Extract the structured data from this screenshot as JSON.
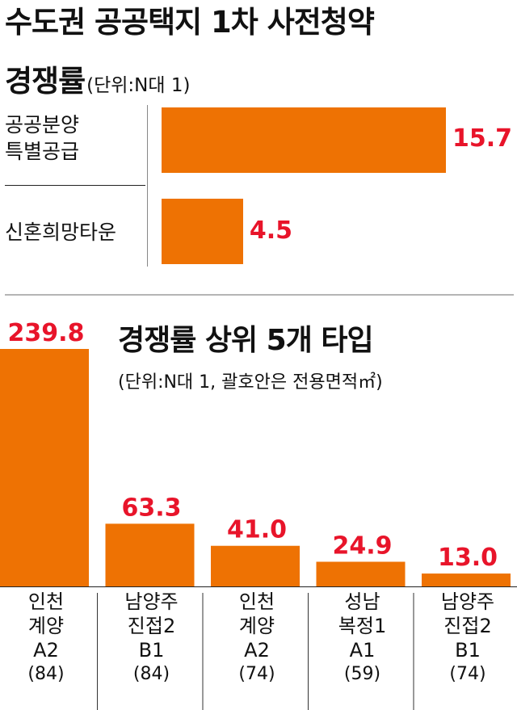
{
  "header": {
    "title_line1": "수도권 공공택지 1차 사전청약",
    "title_line2": "경쟁률",
    "unit": "(단위:N대 1)"
  },
  "chart_data": [
    {
      "type": "bar",
      "orientation": "horizontal",
      "title": "수도권 공공택지 1차 사전청약 경쟁률",
      "unit": "(단위:N대 1)",
      "categories": [
        "공공분양 특별공급",
        "신혼희망타운"
      ],
      "category_lines": [
        [
          "공공분양",
          "특별공급"
        ],
        [
          "신혼희망타운"
        ]
      ],
      "values": [
        15.7,
        4.5
      ],
      "value_labels": [
        "15.7",
        "4.5"
      ],
      "xlim": [
        0,
        15.7
      ],
      "bar_color": "#ee7203",
      "value_color": "#e8142a",
      "grid": false
    },
    {
      "type": "bar",
      "orientation": "vertical",
      "title": "경쟁률 상위 5개 타입",
      "unit": "(단위:N대 1, 괄호안은 전용면적㎡)",
      "categories": [
        "인천 계양 A2 (84)",
        "남양주 진접2 B1 (84)",
        "인천 계양 A2 (74)",
        "성남 복정1 A1 (59)",
        "남양주 진접2 B1 (74)"
      ],
      "category_lines": [
        [
          "인천",
          "계양",
          "A2",
          "(84)"
        ],
        [
          "남양주",
          "진접2",
          "B1",
          "(84)"
        ],
        [
          "인천",
          "계양",
          "A2",
          "(74)"
        ],
        [
          "성남",
          "복정1",
          "A1",
          "(59)"
        ],
        [
          "남양주",
          "진접2",
          "B1",
          "(74)"
        ]
      ],
      "values": [
        239.8,
        63.3,
        41.0,
        24.9,
        13.0
      ],
      "value_labels": [
        "239.8",
        "63.3",
        "41.0",
        "24.9",
        "13.0"
      ],
      "ylim": [
        0,
        239.8
      ],
      "bar_color": "#ee7203",
      "value_color": "#e8142a",
      "grid": false
    }
  ]
}
